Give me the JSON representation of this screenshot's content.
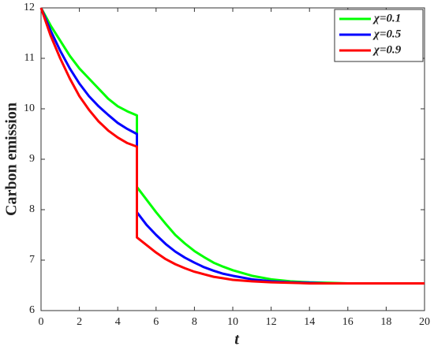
{
  "chart_data": {
    "type": "line",
    "x_label": "t",
    "y_label": "Carbon emission",
    "x": [
      0,
      0.5,
      1,
      1.5,
      2,
      2.5,
      3,
      3.5,
      4,
      4.5,
      5,
      5,
      5.5,
      6,
      6.5,
      7,
      7.5,
      8,
      8.5,
      9,
      9.5,
      10,
      11,
      12,
      13,
      14,
      15,
      16,
      17,
      18,
      19,
      20
    ],
    "series": [
      {
        "name": "χ=0.1",
        "color": "#00ff00",
        "values": [
          12,
          11.65,
          11.35,
          11.05,
          10.8,
          10.6,
          10.4,
          10.2,
          10.05,
          9.95,
          9.87,
          8.45,
          8.2,
          7.95,
          7.72,
          7.5,
          7.33,
          7.18,
          7.06,
          6.95,
          6.87,
          6.8,
          6.69,
          6.62,
          6.58,
          6.56,
          6.55,
          6.54,
          6.54,
          6.54,
          6.54,
          6.54
        ]
      },
      {
        "name": "χ=0.5",
        "color": "#0000ff",
        "values": [
          12,
          11.55,
          11.15,
          10.8,
          10.5,
          10.25,
          10.05,
          9.88,
          9.72,
          9.6,
          9.5,
          7.95,
          7.7,
          7.5,
          7.32,
          7.17,
          7.05,
          6.95,
          6.86,
          6.79,
          6.73,
          6.69,
          6.62,
          6.58,
          6.56,
          6.55,
          6.54,
          6.54,
          6.54,
          6.54,
          6.54,
          6.54
        ]
      },
      {
        "name": "χ=0.9",
        "color": "#ff0000",
        "values": [
          12,
          11.45,
          11.0,
          10.6,
          10.25,
          9.98,
          9.75,
          9.57,
          9.43,
          9.32,
          9.25,
          7.45,
          7.3,
          7.15,
          7.02,
          6.92,
          6.84,
          6.77,
          6.72,
          6.67,
          6.64,
          6.61,
          6.58,
          6.56,
          6.55,
          6.54,
          6.54,
          6.54,
          6.54,
          6.54,
          6.54,
          6.54
        ]
      }
    ],
    "xlim": [
      0,
      20
    ],
    "xticks": [
      0,
      2,
      4,
      6,
      8,
      10,
      12,
      14,
      16,
      18,
      20
    ],
    "ylim": [
      6,
      12
    ],
    "yticks": [
      6,
      7,
      8,
      9,
      10,
      11,
      12
    ],
    "grid": false,
    "legend": "top-right"
  }
}
